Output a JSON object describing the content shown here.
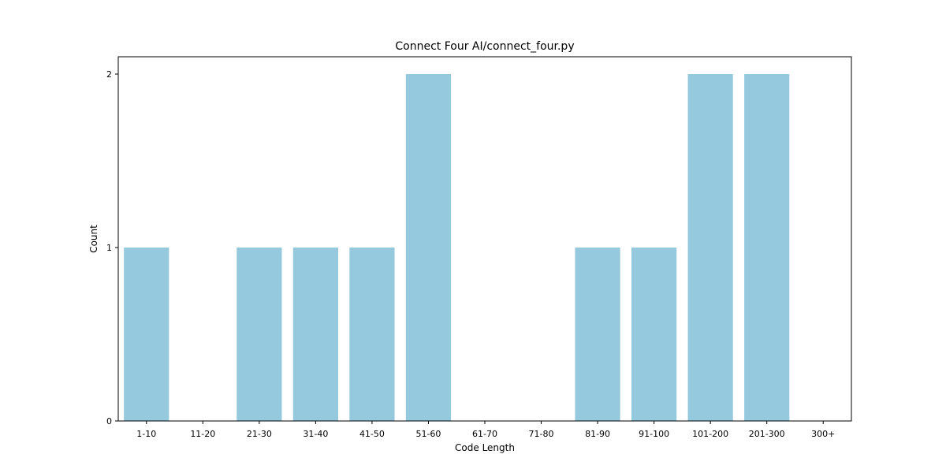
{
  "chart_data": {
    "type": "bar",
    "title": "Connect Four AI/connect_four.py",
    "xlabel": "Code Length",
    "ylabel": "Count",
    "categories": [
      "1-10",
      "11-20",
      "21-30",
      "31-40",
      "41-50",
      "51-60",
      "61-70",
      "71-80",
      "81-90",
      "91-100",
      "101-200",
      "201-300",
      "300+"
    ],
    "values": [
      1,
      0,
      1,
      1,
      1,
      2,
      0,
      0,
      1,
      1,
      2,
      2,
      0
    ],
    "yticks": [
      0,
      1,
      2
    ],
    "ylim": [
      0,
      2.1
    ],
    "bar_color": "#95c9de",
    "grid": false,
    "legend": "none"
  }
}
